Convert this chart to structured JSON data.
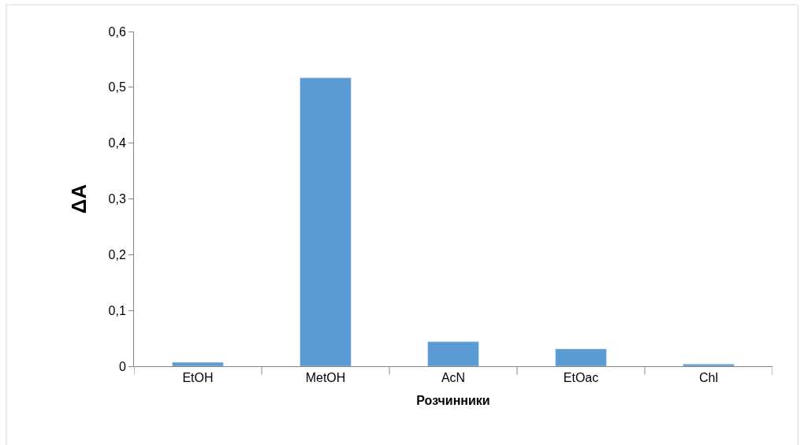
{
  "chart_data": {
    "type": "bar",
    "xlabel": "Розчинники",
    "ylabel": "ΔA",
    "categories": [
      "EtOH",
      "MetOH",
      "AcN",
      "EtOac",
      "Chl"
    ],
    "values": [
      0.007,
      0.517,
      0.044,
      0.031,
      0.004
    ],
    "color": "#5b9bd5",
    "ylim": [
      0,
      0.6
    ],
    "yticks": [
      {
        "value": 0,
        "label": "0"
      },
      {
        "value": 0.1,
        "label": "0,1"
      },
      {
        "value": 0.2,
        "label": "0,2"
      },
      {
        "value": 0.3,
        "label": "0,3"
      },
      {
        "value": 0.4,
        "label": "0,4"
      },
      {
        "value": 0.5,
        "label": "0,5"
      },
      {
        "value": 0.6,
        "label": "0,6"
      }
    ],
    "grid": false,
    "legend": false
  }
}
